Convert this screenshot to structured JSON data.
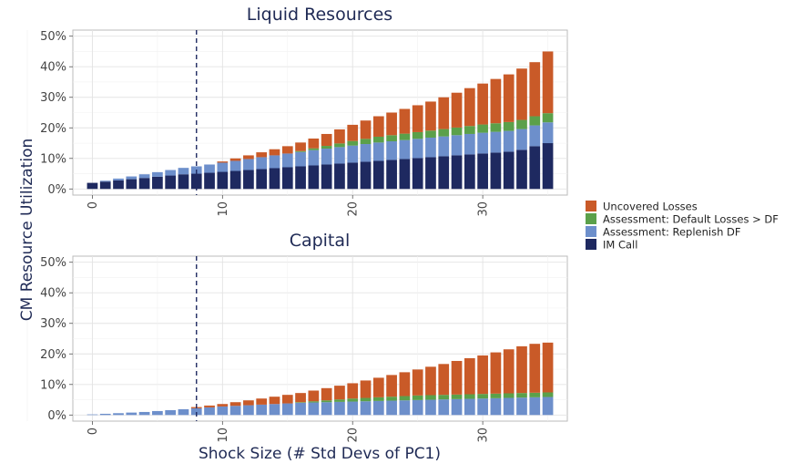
{
  "chart_data": {
    "type": "bar",
    "stacked": true,
    "ylabel": "CM Resource Utilization",
    "xlabel": "Shock Size (# Std Devs of PC1)",
    "x_ticks": [
      "0",
      "10",
      "20",
      "30"
    ],
    "y_ticks": [
      "0%",
      "10%",
      "20%",
      "30%",
      "40%",
      "50%"
    ],
    "xlim": [
      -1.5,
      36.5
    ],
    "ylim": [
      -0.02,
      0.52
    ],
    "vline_x": 8,
    "grid": true,
    "legend_position": "right",
    "legend": [
      {
        "key": "uncovered",
        "label": "Uncovered Losses",
        "color": "#C95A28"
      },
      {
        "key": "assessment_df",
        "label": "Assessment: Default Losses > DF",
        "color": "#5BA04A"
      },
      {
        "key": "replenish",
        "label": "Assessment: Replenish DF",
        "color": "#6D8FCB"
      },
      {
        "key": "im_call",
        "label": "IM Call",
        "color": "#1E2960"
      }
    ],
    "panels": [
      {
        "title": "Liquid Resources",
        "x": [
          0,
          1,
          2,
          3,
          4,
          5,
          6,
          7,
          8,
          9,
          10,
          11,
          12,
          13,
          14,
          15,
          16,
          17,
          18,
          19,
          20,
          21,
          22,
          23,
          24,
          25,
          26,
          27,
          28,
          29,
          30,
          31,
          32,
          33,
          34,
          35
        ],
        "series": [
          {
            "key": "im_call",
            "values": [
              0.02,
              0.024,
              0.028,
              0.032,
              0.036,
              0.04,
              0.044,
              0.048,
              0.05,
              0.053,
              0.056,
              0.059,
              0.062,
              0.065,
              0.068,
              0.071,
              0.074,
              0.077,
              0.08,
              0.083,
              0.086,
              0.089,
              0.092,
              0.095,
              0.098,
              0.101,
              0.104,
              0.107,
              0.11,
              0.113,
              0.116,
              0.119,
              0.122,
              0.128,
              0.14,
              0.15
            ]
          },
          {
            "key": "replenish",
            "values": [
              0.0,
              0.003,
              0.006,
              0.009,
              0.012,
              0.015,
              0.018,
              0.021,
              0.024,
              0.027,
              0.03,
              0.033,
              0.036,
              0.039,
              0.042,
              0.045,
              0.047,
              0.05,
              0.052,
              0.054,
              0.056,
              0.058,
              0.06,
              0.061,
              0.062,
              0.063,
              0.064,
              0.065,
              0.066,
              0.067,
              0.068,
              0.068,
              0.068,
              0.068,
              0.068,
              0.068
            ]
          },
          {
            "key": "assessment_df",
            "values": [
              0,
              0,
              0,
              0,
              0,
              0,
              0,
              0,
              0,
              0,
              0,
              0,
              0,
              0,
              0,
              0,
              0.003,
              0.006,
              0.009,
              0.012,
              0.015,
              0.017,
              0.019,
              0.02,
              0.021,
              0.022,
              0.023,
              0.024,
              0.025,
              0.026,
              0.027,
              0.028,
              0.029,
              0.03,
              0.03,
              0.03
            ]
          },
          {
            "key": "uncovered",
            "values": [
              0.0,
              0.0,
              0.0,
              0.0,
              0.0,
              0.0,
              0.0,
              0.0,
              0.0,
              0.0,
              0.004,
              0.008,
              0.012,
              0.016,
              0.02,
              0.024,
              0.028,
              0.032,
              0.039,
              0.046,
              0.053,
              0.06,
              0.067,
              0.074,
              0.081,
              0.088,
              0.095,
              0.104,
              0.114,
              0.124,
              0.134,
              0.145,
              0.156,
              0.168,
              0.177,
              0.202
            ]
          }
        ]
      },
      {
        "title": "Capital",
        "x": [
          0,
          1,
          2,
          3,
          4,
          5,
          6,
          7,
          8,
          9,
          10,
          11,
          12,
          13,
          14,
          15,
          16,
          17,
          18,
          19,
          20,
          21,
          22,
          23,
          24,
          25,
          26,
          27,
          28,
          29,
          30,
          31,
          32,
          33,
          34,
          35
        ],
        "series": [
          {
            "key": "im_call",
            "values": [
              0,
              0,
              0,
              0,
              0,
              0,
              0,
              0,
              0,
              0,
              0,
              0,
              0,
              0,
              0,
              0,
              0,
              0,
              0,
              0,
              0,
              0,
              0,
              0,
              0,
              0,
              0,
              0,
              0,
              0,
              0,
              0,
              0,
              0,
              0,
              0
            ]
          },
          {
            "key": "replenish",
            "values": [
              0.002,
              0.004,
              0.006,
              0.008,
              0.01,
              0.013,
              0.016,
              0.019,
              0.022,
              0.025,
              0.028,
              0.03,
              0.032,
              0.034,
              0.036,
              0.038,
              0.04,
              0.041,
              0.042,
              0.043,
              0.044,
              0.045,
              0.046,
              0.047,
              0.048,
              0.049,
              0.05,
              0.051,
              0.052,
              0.053,
              0.054,
              0.055,
              0.056,
              0.057,
              0.058,
              0.059
            ]
          },
          {
            "key": "assessment_df",
            "values": [
              0,
              0,
              0,
              0,
              0,
              0,
              0,
              0,
              0,
              0,
              0,
              0,
              0,
              0,
              0,
              0,
              0.002,
              0.004,
              0.006,
              0.008,
              0.01,
              0.011,
              0.012,
              0.013,
              0.014,
              0.015,
              0.015,
              0.015,
              0.015,
              0.015,
              0.015,
              0.015,
              0.015,
              0.015,
              0.015,
              0.015
            ]
          },
          {
            "key": "uncovered",
            "values": [
              0,
              0,
              0,
              0,
              0,
              0,
              0,
              0,
              0.004,
              0.006,
              0.008,
              0.012,
              0.016,
              0.02,
              0.024,
              0.028,
              0.03,
              0.035,
              0.04,
              0.045,
              0.05,
              0.057,
              0.064,
              0.071,
              0.078,
              0.085,
              0.093,
              0.101,
              0.11,
              0.118,
              0.126,
              0.135,
              0.144,
              0.153,
              0.16,
              0.163
            ]
          }
        ]
      }
    ]
  }
}
